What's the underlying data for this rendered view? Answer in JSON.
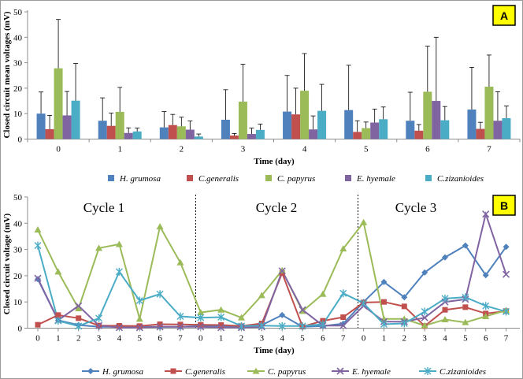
{
  "chart_data": [
    {
      "type": "bar",
      "panel_label": "A",
      "ylabel": "Closed circuit mean voltages (mV)",
      "xlabel": "Time (day)",
      "ylim": [
        0,
        50
      ],
      "yticks": [
        0,
        10,
        20,
        30,
        40,
        50
      ],
      "categories": [
        "0",
        "1",
        "2",
        "3",
        "4",
        "5",
        "6",
        "7"
      ],
      "series": [
        {
          "name": "H. grumosa",
          "color": "#4f81bd",
          "values": [
            10,
            7.2,
            4.6,
            7.6,
            10.8,
            11.4,
            7.2,
            11.6
          ],
          "errors": [
            8.5,
            9,
            6.2,
            11.8,
            14.2,
            17.6,
            11.2,
            16.6
          ]
        },
        {
          "name": "C.generalis",
          "color": "#c0504d",
          "values": [
            3.9,
            5.2,
            5.5,
            1.4,
            9.7,
            2.8,
            3.3,
            4
          ],
          "errors": [
            5.4,
            5,
            4.2,
            0.8,
            10.3,
            4.4,
            2.4,
            2.6
          ]
        },
        {
          "name": "C. papyrus",
          "color": "#9bbb59",
          "values": [
            27.8,
            10.7,
            5,
            14.7,
            19,
            4.3,
            18.6,
            20.6
          ],
          "errors": [
            19.2,
            9.6,
            3.6,
            14.7,
            14.6,
            2.4,
            17.9,
            12.4
          ]
        },
        {
          "name": "E. hyemale",
          "color": "#8064a2",
          "values": [
            9.3,
            2.4,
            3.7,
            2,
            3.8,
            6.5,
            15,
            7.2
          ],
          "errors": [
            9.4,
            2,
            3.4,
            2.3,
            5.3,
            5.3,
            25,
            11.4
          ]
        },
        {
          "name": "C.zizanioides",
          "color": "#4bacc6",
          "values": [
            15.1,
            3,
            1,
            3.6,
            11.1,
            7.8,
            7.4,
            8.2
          ],
          "errors": [
            14.6,
            1.3,
            1,
            2.3,
            10.4,
            4.8,
            5.4,
            4.8
          ]
        }
      ]
    },
    {
      "type": "line",
      "panel_label": "B",
      "ylabel": "Closed circuit voltage (mV)",
      "xlabel": "Time (day)",
      "ylim": [
        0,
        50
      ],
      "yticks": [
        0,
        10,
        20,
        30,
        40,
        50
      ],
      "x_tick_labels": [
        "0",
        "1",
        "2",
        "3",
        "4",
        "5",
        "6",
        "7",
        "0",
        "1",
        "2",
        "3",
        "4",
        "5",
        "6",
        "7",
        "0",
        "1",
        "2",
        "3",
        "4",
        "5",
        "6",
        "7"
      ],
      "cycles": [
        {
          "label": "Cycle 1"
        },
        {
          "label": "Cycle 2"
        },
        {
          "label": "Cycle 3"
        }
      ],
      "series": [
        {
          "name": "H. grumosa",
          "color": "#4f81bd",
          "marker": "diamond",
          "values": [
            18.7,
            3,
            1.2,
            0.5,
            0.5,
            0.5,
            0.5,
            0.5,
            0.8,
            0.8,
            0.5,
            1.2,
            5,
            0.5,
            0.8,
            1.7,
            10,
            17.6,
            11.8,
            21.2,
            27,
            31.5,
            20.2,
            31
          ]
        },
        {
          "name": "C.generalis",
          "color": "#c0504d",
          "marker": "square",
          "values": [
            1.3,
            5,
            3.8,
            1,
            0.9,
            0.8,
            1.5,
            1.4,
            1.3,
            1.2,
            0.8,
            1.8,
            21,
            0.6,
            2.8,
            4.2,
            9.8,
            10,
            8.3,
            0.8,
            7,
            8,
            5.6,
            6.5
          ]
        },
        {
          "name": "C. papyrus",
          "color": "#9bbb59",
          "marker": "triangle",
          "values": [
            37.5,
            21.5,
            7.5,
            30.5,
            32,
            3.5,
            38.7,
            25,
            6,
            7,
            4,
            12.5,
            22,
            6.5,
            13,
            30.3,
            40.3,
            3.5,
            3.5,
            1,
            3.3,
            2.2,
            4.5,
            6.8
          ]
        },
        {
          "name": "E. hyemale",
          "color": "#8064a2",
          "marker": "x",
          "values": [
            19,
            3,
            8.5,
            1,
            0.2,
            0.2,
            0.5,
            0.5,
            0.5,
            0.2,
            0.2,
            0.5,
            21.8,
            7,
            1,
            1,
            8.5,
            2.5,
            2.5,
            4,
            10,
            11,
            43.5,
            20.5
          ]
        },
        {
          "name": "C.zizanioides",
          "color": "#4bacc6",
          "marker": "star",
          "values": [
            31.5,
            2.8,
            0.8,
            3.8,
            21.5,
            10.5,
            13,
            4.5,
            4,
            4.2,
            0.8,
            1,
            0.8,
            0.8,
            1.5,
            13.3,
            9.5,
            1.5,
            1.8,
            6.3,
            11.3,
            11.8,
            8.5,
            6.3
          ]
        }
      ]
    }
  ]
}
